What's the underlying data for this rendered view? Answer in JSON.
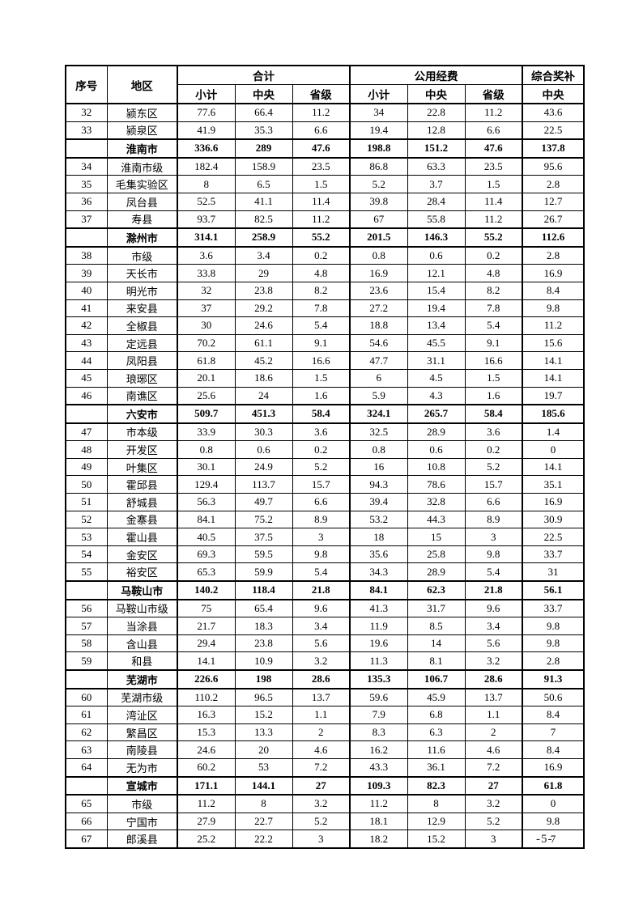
{
  "page": {
    "number_label": "-5-"
  },
  "table": {
    "header": {
      "col_serial": "序号",
      "col_region": "地区",
      "grp_total": "合计",
      "grp_public": "公用经费",
      "grp_award": "综合奖补",
      "sub": [
        "小计",
        "中央",
        "省级",
        "小计",
        "中央",
        "省级",
        "中央"
      ]
    },
    "rows": [
      {
        "no": "32",
        "region": "颍东区",
        "bold": false,
        "values": [
          "77.6",
          "66.4",
          "11.2",
          "34",
          "22.8",
          "11.2",
          "43.6"
        ]
      },
      {
        "no": "33",
        "region": "颍泉区",
        "bold": false,
        "values": [
          "41.9",
          "35.3",
          "6.6",
          "19.4",
          "12.8",
          "6.6",
          "22.5"
        ]
      },
      {
        "no": "",
        "region": "淮南市",
        "bold": true,
        "values": [
          "336.6",
          "289",
          "47.6",
          "198.8",
          "151.2",
          "47.6",
          "137.8"
        ]
      },
      {
        "no": "34",
        "region": "淮南市级",
        "bold": false,
        "values": [
          "182.4",
          "158.9",
          "23.5",
          "86.8",
          "63.3",
          "23.5",
          "95.6"
        ]
      },
      {
        "no": "35",
        "region": "毛集实验区",
        "bold": false,
        "values": [
          "8",
          "6.5",
          "1.5",
          "5.2",
          "3.7",
          "1.5",
          "2.8"
        ]
      },
      {
        "no": "36",
        "region": "凤台县",
        "bold": false,
        "values": [
          "52.5",
          "41.1",
          "11.4",
          "39.8",
          "28.4",
          "11.4",
          "12.7"
        ]
      },
      {
        "no": "37",
        "region": "寿县",
        "bold": false,
        "values": [
          "93.7",
          "82.5",
          "11.2",
          "67",
          "55.8",
          "11.2",
          "26.7"
        ]
      },
      {
        "no": "",
        "region": "滁州市",
        "bold": true,
        "values": [
          "314.1",
          "258.9",
          "55.2",
          "201.5",
          "146.3",
          "55.2",
          "112.6"
        ]
      },
      {
        "no": "38",
        "region": "市级",
        "bold": false,
        "values": [
          "3.6",
          "3.4",
          "0.2",
          "0.8",
          "0.6",
          "0.2",
          "2.8"
        ]
      },
      {
        "no": "39",
        "region": "天长市",
        "bold": false,
        "values": [
          "33.8",
          "29",
          "4.8",
          "16.9",
          "12.1",
          "4.8",
          "16.9"
        ]
      },
      {
        "no": "40",
        "region": "明光市",
        "bold": false,
        "values": [
          "32",
          "23.8",
          "8.2",
          "23.6",
          "15.4",
          "8.2",
          "8.4"
        ]
      },
      {
        "no": "41",
        "region": "来安县",
        "bold": false,
        "values": [
          "37",
          "29.2",
          "7.8",
          "27.2",
          "19.4",
          "7.8",
          "9.8"
        ]
      },
      {
        "no": "42",
        "region": "全椒县",
        "bold": false,
        "values": [
          "30",
          "24.6",
          "5.4",
          "18.8",
          "13.4",
          "5.4",
          "11.2"
        ]
      },
      {
        "no": "43",
        "region": "定远县",
        "bold": false,
        "values": [
          "70.2",
          "61.1",
          "9.1",
          "54.6",
          "45.5",
          "9.1",
          "15.6"
        ]
      },
      {
        "no": "44",
        "region": "凤阳县",
        "bold": false,
        "values": [
          "61.8",
          "45.2",
          "16.6",
          "47.7",
          "31.1",
          "16.6",
          "14.1"
        ]
      },
      {
        "no": "45",
        "region": "琅琊区",
        "bold": false,
        "values": [
          "20.1",
          "18.6",
          "1.5",
          "6",
          "4.5",
          "1.5",
          "14.1"
        ]
      },
      {
        "no": "46",
        "region": "南谯区",
        "bold": false,
        "values": [
          "25.6",
          "24",
          "1.6",
          "5.9",
          "4.3",
          "1.6",
          "19.7"
        ]
      },
      {
        "no": "",
        "region": "六安市",
        "bold": true,
        "values": [
          "509.7",
          "451.3",
          "58.4",
          "324.1",
          "265.7",
          "58.4",
          "185.6"
        ]
      },
      {
        "no": "47",
        "region": "市本级",
        "bold": false,
        "values": [
          "33.9",
          "30.3",
          "3.6",
          "32.5",
          "28.9",
          "3.6",
          "1.4"
        ]
      },
      {
        "no": "48",
        "region": "开发区",
        "bold": false,
        "values": [
          "0.8",
          "0.6",
          "0.2",
          "0.8",
          "0.6",
          "0.2",
          "0"
        ]
      },
      {
        "no": "49",
        "region": "叶集区",
        "bold": false,
        "values": [
          "30.1",
          "24.9",
          "5.2",
          "16",
          "10.8",
          "5.2",
          "14.1"
        ]
      },
      {
        "no": "50",
        "region": "霍邱县",
        "bold": false,
        "values": [
          "129.4",
          "113.7",
          "15.7",
          "94.3",
          "78.6",
          "15.7",
          "35.1"
        ]
      },
      {
        "no": "51",
        "region": "舒城县",
        "bold": false,
        "values": [
          "56.3",
          "49.7",
          "6.6",
          "39.4",
          "32.8",
          "6.6",
          "16.9"
        ]
      },
      {
        "no": "52",
        "region": "金寨县",
        "bold": false,
        "values": [
          "84.1",
          "75.2",
          "8.9",
          "53.2",
          "44.3",
          "8.9",
          "30.9"
        ]
      },
      {
        "no": "53",
        "region": "霍山县",
        "bold": false,
        "values": [
          "40.5",
          "37.5",
          "3",
          "18",
          "15",
          "3",
          "22.5"
        ]
      },
      {
        "no": "54",
        "region": "金安区",
        "bold": false,
        "values": [
          "69.3",
          "59.5",
          "9.8",
          "35.6",
          "25.8",
          "9.8",
          "33.7"
        ]
      },
      {
        "no": "55",
        "region": "裕安区",
        "bold": false,
        "values": [
          "65.3",
          "59.9",
          "5.4",
          "34.3",
          "28.9",
          "5.4",
          "31"
        ]
      },
      {
        "no": "",
        "region": "马鞍山市",
        "bold": true,
        "values": [
          "140.2",
          "118.4",
          "21.8",
          "84.1",
          "62.3",
          "21.8",
          "56.1"
        ]
      },
      {
        "no": "56",
        "region": "马鞍山市级",
        "bold": false,
        "values": [
          "75",
          "65.4",
          "9.6",
          "41.3",
          "31.7",
          "9.6",
          "33.7"
        ]
      },
      {
        "no": "57",
        "region": "当涂县",
        "bold": false,
        "values": [
          "21.7",
          "18.3",
          "3.4",
          "11.9",
          "8.5",
          "3.4",
          "9.8"
        ]
      },
      {
        "no": "58",
        "region": "含山县",
        "bold": false,
        "values": [
          "29.4",
          "23.8",
          "5.6",
          "19.6",
          "14",
          "5.6",
          "9.8"
        ]
      },
      {
        "no": "59",
        "region": "和县",
        "bold": false,
        "values": [
          "14.1",
          "10.9",
          "3.2",
          "11.3",
          "8.1",
          "3.2",
          "2.8"
        ]
      },
      {
        "no": "",
        "region": "芜湖市",
        "bold": true,
        "values": [
          "226.6",
          "198",
          "28.6",
          "135.3",
          "106.7",
          "28.6",
          "91.3"
        ]
      },
      {
        "no": "60",
        "region": "芜湖市级",
        "bold": false,
        "values": [
          "110.2",
          "96.5",
          "13.7",
          "59.6",
          "45.9",
          "13.7",
          "50.6"
        ]
      },
      {
        "no": "61",
        "region": "湾沚区",
        "bold": false,
        "values": [
          "16.3",
          "15.2",
          "1.1",
          "7.9",
          "6.8",
          "1.1",
          "8.4"
        ]
      },
      {
        "no": "62",
        "region": "繁昌区",
        "bold": false,
        "values": [
          "15.3",
          "13.3",
          "2",
          "8.3",
          "6.3",
          "2",
          "7"
        ]
      },
      {
        "no": "63",
        "region": "南陵县",
        "bold": false,
        "values": [
          "24.6",
          "20",
          "4.6",
          "16.2",
          "11.6",
          "4.6",
          "8.4"
        ]
      },
      {
        "no": "64",
        "region": "无为市",
        "bold": false,
        "values": [
          "60.2",
          "53",
          "7.2",
          "43.3",
          "36.1",
          "7.2",
          "16.9"
        ]
      },
      {
        "no": "",
        "region": "宣城市",
        "bold": true,
        "values": [
          "171.1",
          "144.1",
          "27",
          "109.3",
          "82.3",
          "27",
          "61.8"
        ]
      },
      {
        "no": "65",
        "region": "市级",
        "bold": false,
        "values": [
          "11.2",
          "8",
          "3.2",
          "11.2",
          "8",
          "3.2",
          "0"
        ]
      },
      {
        "no": "66",
        "region": "宁国市",
        "bold": false,
        "values": [
          "27.9",
          "22.7",
          "5.2",
          "18.1",
          "12.9",
          "5.2",
          "9.8"
        ]
      },
      {
        "no": "67",
        "region": "郎溪县",
        "bold": false,
        "values": [
          "25.2",
          "22.2",
          "3",
          "18.2",
          "15.2",
          "3",
          "7"
        ]
      }
    ]
  }
}
